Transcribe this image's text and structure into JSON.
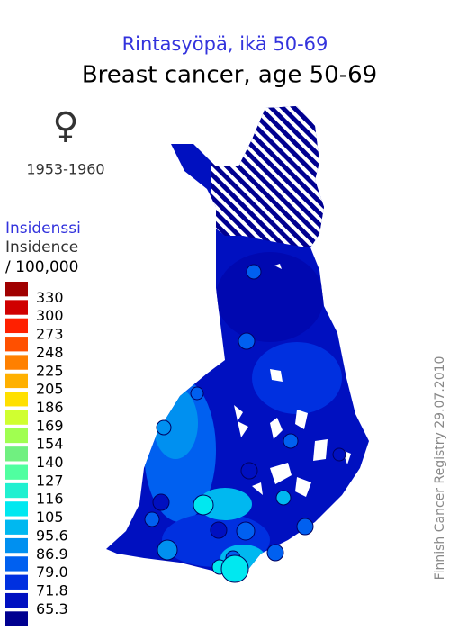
{
  "title_fi": "Rintasyöpä, ikä 50-69",
  "title_en": "Breast cancer, age 50-69",
  "symbol": "♀",
  "period": "1953-1960",
  "legend": {
    "title_fi": "Insidenssi",
    "title_en": "Insidence",
    "unit": "/ 100,000",
    "labels": [
      "330",
      "300",
      "273",
      "248",
      "225",
      "205",
      "186",
      "169",
      "154",
      "140",
      "127",
      "116",
      "105",
      "95.6",
      "86.9",
      "79.0",
      "71.8",
      "65.3"
    ],
    "colors": [
      "#a00000",
      "#d00000",
      "#ff2000",
      "#ff5000",
      "#ff8000",
      "#ffb000",
      "#ffe000",
      "#d0ff30",
      "#a0ff50",
      "#70f080",
      "#50ffa0",
      "#20f0d0",
      "#00e8f0",
      "#00b8f0",
      "#0090f0",
      "#0060f0",
      "#0030e0",
      "#0010c0",
      "#000090"
    ]
  },
  "credit": "Finnish Cancer Registry 29.07.2010"
}
